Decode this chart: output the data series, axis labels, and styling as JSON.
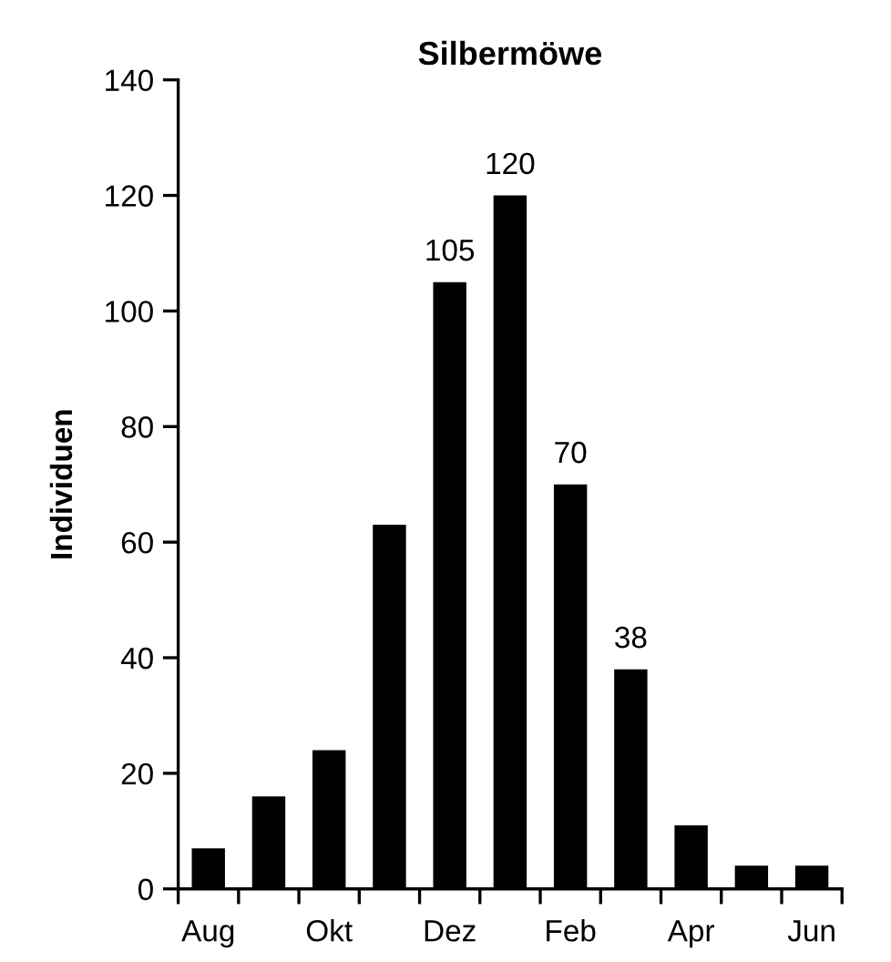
{
  "chart_data": {
    "type": "bar",
    "title": "Silbermöwe",
    "ylabel": "Individuen",
    "categories": [
      "Aug",
      null,
      "Okt",
      null,
      "Dez",
      null,
      "Feb",
      null,
      "Apr",
      null,
      "Jun"
    ],
    "values": [
      7,
      16,
      24,
      63,
      105,
      120,
      70,
      38,
      11,
      4,
      4
    ],
    "value_labels": [
      null,
      null,
      null,
      null,
      "105",
      "120",
      "70",
      "38",
      null,
      null,
      null
    ],
    "color": "#000000",
    "ylim": [
      0,
      140
    ],
    "yticks": [
      0,
      20,
      40,
      60,
      80,
      100,
      120,
      140
    ],
    "grid": false,
    "legend": false
  }
}
